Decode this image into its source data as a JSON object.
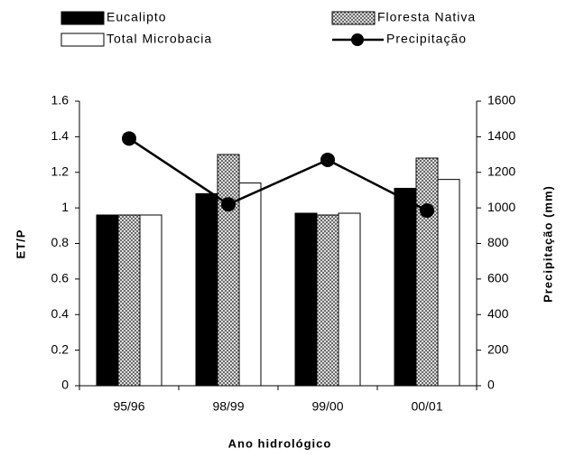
{
  "chart_data": {
    "type": "bar-line",
    "categories": [
      "95/96",
      "98/99",
      "99/00",
      "00/01"
    ],
    "series": [
      {
        "name": "Eucalipto",
        "type": "bar",
        "color": "#000000",
        "values": [
          0.96,
          1.08,
          0.97,
          1.11
        ]
      },
      {
        "name": "Floresta Nativa",
        "type": "bar",
        "color": "#ffffff",
        "hatch": true,
        "values": [
          0.96,
          1.3,
          0.96,
          1.28
        ]
      },
      {
        "name": "Total Microbacia",
        "type": "bar",
        "color": "#ffffff",
        "values": [
          0.96,
          1.14,
          0.97,
          1.16
        ]
      },
      {
        "name": "Precipitação",
        "type": "line",
        "axis": "y2",
        "color": "#000000",
        "values": [
          1390,
          1020,
          1270,
          985
        ]
      }
    ],
    "ylabel": "ET/P",
    "y2label": "Precipitação (mm)",
    "xlabel": "Ano hidrológico",
    "ylim": [
      0,
      1.6
    ],
    "yticks": [
      0,
      0.2,
      0.4,
      0.6,
      0.8,
      1,
      1.2,
      1.4,
      1.6
    ],
    "y2lim": [
      0,
      1600
    ],
    "y2ticks": [
      0,
      200,
      400,
      600,
      800,
      1000,
      1200,
      1400,
      1600
    ],
    "grid": false
  }
}
